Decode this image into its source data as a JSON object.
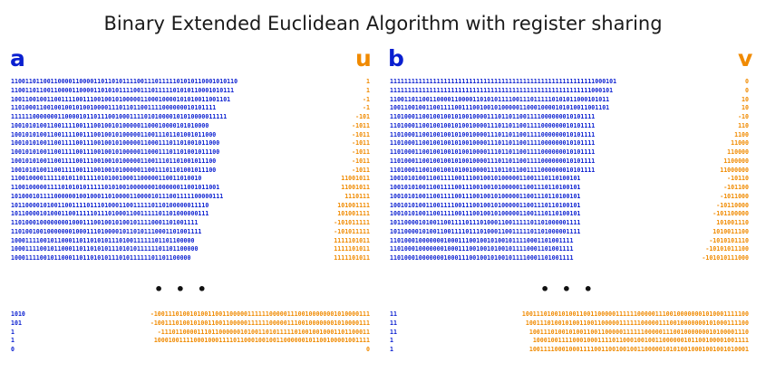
{
  "title": "Binary Extended Euclidean Algorithm with register sharing",
  "labels": {
    "a": "a",
    "u": "u",
    "b": "b",
    "v": "v"
  },
  "ellipsis": "• • •",
  "colors": {
    "blue": "#0a1fd0",
    "orange": "#f08a00",
    "black": "#111111"
  },
  "left": {
    "a_top": [
      "110011011001100001100001101101011110011101111101010110001010110",
      "11001101100110000110000110101011110011101111101010110001010111",
      "1001100100110011110011100100101000001100010000101010011001101",
      "110100011001001001010010000111011011001111000000010101111",
      "111111000000011000010110111001000111101010000101010000011111",
      "1001010100110011110011100100101000001100010000101010000",
      "100101010011001111001110010010100000110011101101001011000",
      "1001010100110011110011100100101000001100011101101001011000",
      "1001010100110011110011100100101000001100011101101001011100",
      "100101010011001111001110010010100000110011101101001011100",
      "100101010011001111001110010010100000110011101101001011100",
      "11001000011111010110111101010010001100000110011010010",
      "1100100000111101010101111101010010000000100000011001011001",
      "10100010111100000010010001101000011000010111001111100000111",
      "1011000010100110011110111010001100111110110100000011110",
      "1011000010100011001111101110100011001111101101000000111",
      "1101000100000000100011100100101001011110001101001111",
      "11010010010000000100011101000010110101110001101001111",
      "100011110010110001101101010111010011111101101100000",
      "1000111100101100011011010101110101011111101101100000",
      "10001111001011000110110101011101011111101101100000"
    ],
    "u_top": [
      "1",
      "1",
      "-1",
      "-1",
      "-101",
      "-1011",
      "-1011",
      "-1011",
      "-1011",
      "-1011",
      "-1011",
      "11001011",
      "11001011",
      "1110111",
      "101001111",
      "101001111",
      "-101011111",
      "-101011111",
      "1111101011",
      "1111101011",
      "1111101011"
    ],
    "a_bot": [
      "1010",
      "101",
      "1",
      "1",
      "0"
    ],
    "u_bot": [
      "-100111010010100110011000001111110000011100100000001010000111",
      "-100111010010100110011000001111110000011100100000001010000111",
      "-1110110000111011000000101001101011111010010010001101100011",
      "100010011110001000111101100010010011000000101100100001001111",
      "0"
    ]
  },
  "right": {
    "b_top": [
      "111111111111111111111111111111111111111111111111111111111000101",
      "11111111111111111111111111111111111111111111111111111111000101",
      "1100110110011000011000011010101111001110111110101011000101011",
      "1001100100110011110011100100101000001100010000101010011001101",
      "110100011001001001010010000111011011001111000000010101111",
      "110100011001001001010010000111011011001111000000010101111",
      "110100011001001001010010000111011011001111000000010101111",
      "110100011001001001010010000111011011001111000000010101111",
      "110100011001001001010010000111011011001111000000010101111",
      "110100011001001001010010000111011011001111000000010101111",
      "110100011001001001010010000111011011001111000000010101111",
      "10010101001100111100111001001010000011001110110100101",
      "10010101001100111100111001001010000011001110110100101",
      "10010101001100111100111001001010000011001110110100101",
      "10010101001100111100111001001010000011001110110100101",
      "10010101001100111100111001001010000011001110110100101",
      "10110000101001100111101110100011001111101101000001111",
      "10110000101001100111101110100011001111101101000001111",
      "110100010000000100011100100101001011110001101001111",
      "110100010000000100011100100101001011110001101001111",
      "110100010000000100011100100101001011110001101001111"
    ],
    "v_top": [
      "0",
      "0",
      "10",
      "10",
      "-10",
      "110",
      "1100",
      "11000",
      "110000",
      "1100000",
      "11000000",
      "-10110",
      "-101100",
      "-1011000",
      "-10110000",
      "-101100000",
      "101001110",
      "1010011100",
      "-1010101110",
      "-10101011100",
      "-101010111000"
    ],
    "b_bot": [
      "11",
      "11",
      "11",
      "1",
      "1"
    ],
    "v_bot": [
      "100111010010100110011000001111110000011100100000001010001111100",
      "10011101001010011001100000111111000001110010000000101000111100",
      "1001110100101001100110000011111100000111001000000010100001110",
      "100010011110001000111101100010010011000000101100100001001111",
      "1001111000100011110011001001001100000101010010001001001010001"
    ]
  }
}
